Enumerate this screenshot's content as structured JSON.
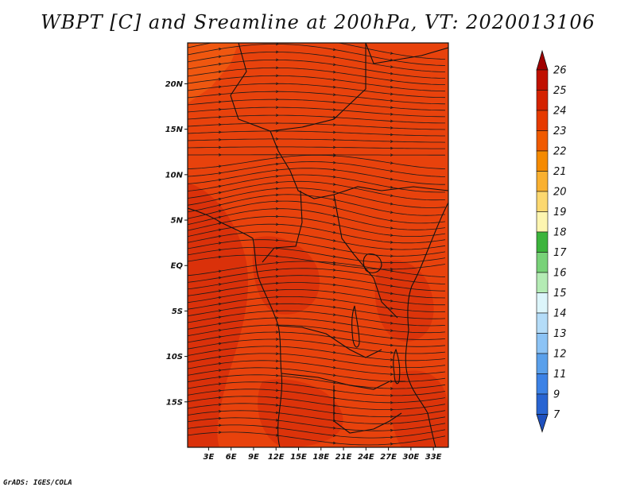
{
  "title": "WBPT [C] and Sreamline at 200hPa, VT: 2020013106",
  "footer": "GrADS: IGES/COLA",
  "map": {
    "lat_labels": [
      "20N",
      "15N",
      "10N",
      "5N",
      "EQ",
      "5S",
      "10S",
      "15S"
    ],
    "lat_values": [
      20,
      15,
      10,
      5,
      0,
      -5,
      -10,
      -15
    ],
    "lon_labels": [
      "3E",
      "6E",
      "9E",
      "12E",
      "15E",
      "18E",
      "21E",
      "24E",
      "27E",
      "30E",
      "33E"
    ],
    "lon_values": [
      3,
      6,
      9,
      12,
      15,
      18,
      21,
      24,
      27,
      30,
      33
    ],
    "lat_range": [
      -20,
      24.5
    ],
    "lon_range": [
      0.2,
      35
    ]
  },
  "colorbar": {
    "labels": [
      "26",
      "25",
      "24",
      "23",
      "22",
      "21",
      "20",
      "19",
      "18",
      "17",
      "16",
      "15",
      "14",
      "13",
      "12",
      "11",
      "9",
      "7"
    ],
    "colors": [
      "#a00000",
      "#c01000",
      "#d42200",
      "#e63a00",
      "#f05a00",
      "#f58a00",
      "#f9b030",
      "#fcd870",
      "#fdf5b0",
      "#3cb43c",
      "#78d278",
      "#b4ebb4",
      "#dcf5fa",
      "#b4dcf8",
      "#8cc3f5",
      "#5aa0eb",
      "#3c82e6",
      "#2864d2",
      "#1e50be"
    ]
  },
  "colors": {
    "field_main": "#e8420c",
    "field_dark": "#d8300a",
    "field_light": "#f05a12",
    "streamline": "#1a1a1a"
  }
}
